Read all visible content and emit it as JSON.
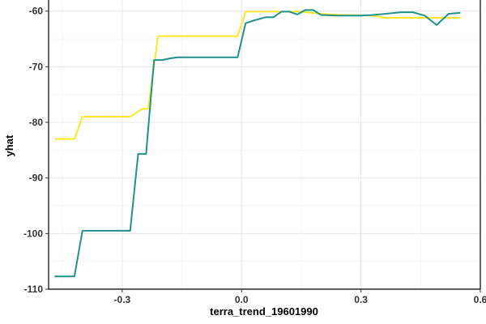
{
  "chart_data": {
    "type": "line",
    "title": "",
    "xlabel": "terra_trend_19601990",
    "ylabel": "yhat",
    "xlim": [
      -0.485,
      0.6
    ],
    "ylim": [
      -110,
      -58
    ],
    "x_ticks": [
      -0.3,
      0.0,
      0.3,
      0.6
    ],
    "x_tick_labels": [
      "-0.3",
      "0.0",
      "0.3",
      "0.6"
    ],
    "y_ticks": [
      -110,
      -100,
      -90,
      -80,
      -70,
      -60
    ],
    "y_tick_labels": [
      "-110",
      "-100",
      "-90",
      "-80",
      "-70",
      "-60"
    ],
    "grid": true,
    "legend": "none",
    "series": [
      {
        "color": "#fde725",
        "x": [
          -0.47,
          -0.42,
          -0.4,
          -0.28,
          -0.25,
          -0.235,
          -0.21,
          -0.2,
          -0.01,
          0.01,
          0.1,
          0.14,
          0.16,
          0.2,
          0.25,
          0.33,
          0.36,
          0.4,
          0.43,
          0.47,
          0.5,
          0.55
        ],
        "y": [
          -83,
          -83,
          -79,
          -79,
          -77.6,
          -77.6,
          -64.5,
          -64.5,
          -64.5,
          -60.1,
          -60.1,
          -60.1,
          -60.2,
          -60.5,
          -60.7,
          -60.8,
          -61.2,
          -61.2,
          -61.2,
          -61.2,
          -61.2,
          -61.2
        ]
      },
      {
        "color": "#21918c",
        "x": [
          -0.47,
          -0.42,
          -0.4,
          -0.28,
          -0.26,
          -0.24,
          -0.22,
          -0.2,
          -0.18,
          -0.16,
          -0.14,
          -0.01,
          0.01,
          0.03,
          0.06,
          0.08,
          0.1,
          0.12,
          0.14,
          0.16,
          0.18,
          0.2,
          0.24,
          0.3,
          0.33,
          0.36,
          0.4,
          0.43,
          0.46,
          0.49,
          0.52,
          0.55
        ],
        "y": [
          -107.7,
          -107.7,
          -99.5,
          -99.5,
          -85.7,
          -85.7,
          -68.8,
          -68.8,
          -68.5,
          -68.3,
          -68.3,
          -68.3,
          -62.2,
          -61.7,
          -61.1,
          -61.1,
          -60.1,
          -60.1,
          -60.6,
          -59.8,
          -59.8,
          -60.7,
          -60.8,
          -60.8,
          -60.7,
          -60.5,
          -60.2,
          -60.2,
          -60.8,
          -62.5,
          -60.5,
          -60.3
        ]
      }
    ]
  }
}
